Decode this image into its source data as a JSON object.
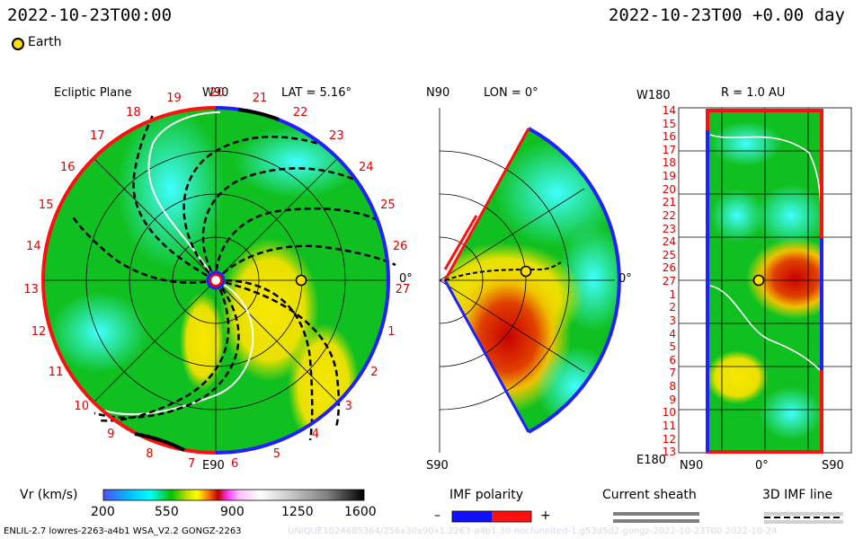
{
  "header": {
    "time_left": "2022-10-23T00:00",
    "time_right": "2022-10-23T00 +0.00 day"
  },
  "legend_earth": {
    "label": "Earth"
  },
  "panel_ecliptic": {
    "title": "Ecliptic Plane",
    "top_label": "W90",
    "lat_label": "LAT = 5.16°",
    "bottom_label": "E90",
    "right_label": "0°",
    "rotation_labels": [
      "20",
      "21",
      "22",
      "23",
      "24",
      "25",
      "26",
      "27",
      "1",
      "2",
      "3",
      "4",
      "5",
      "6",
      "7",
      "8",
      "9",
      "10",
      "11",
      "12",
      "13",
      "14",
      "15",
      "16",
      "17",
      "18",
      "19"
    ]
  },
  "panel_meridional": {
    "top_label": "N90",
    "lon_label": "LON = 0°",
    "bottom_label": "S90",
    "right_label": "0°"
  },
  "panel_lonlat": {
    "top_left_label": "W180",
    "radius_label": "R = 1.0 AU",
    "bottom_left_label": "E180",
    "x_labels": [
      "N90",
      "0°",
      "S90"
    ],
    "y_labels": [
      "14",
      "15",
      "16",
      "17",
      "18",
      "19",
      "20",
      "21",
      "22",
      "23",
      "24",
      "25",
      "26",
      "27",
      "1",
      "2",
      "3",
      "4",
      "5",
      "6",
      "7",
      "8",
      "9",
      "10",
      "11",
      "12",
      "13"
    ]
  },
  "colorbar": {
    "label": "Vr (km/s)",
    "ticks": [
      "200",
      "550",
      "900",
      "1250",
      "1600"
    ]
  },
  "imf_polarity": {
    "label": "IMF polarity",
    "minus": "–",
    "plus": "+"
  },
  "current_sheath": {
    "label": "Current sheath"
  },
  "imf_3d": {
    "label": "3D IMF line"
  },
  "footer": {
    "left": "ENLIL-2.7 lowres-2263-a4b1 WSA_V2.2 GONGZ-2263",
    "right": "UNIQUE1024685364/256x30x90x1.2263-a4b1.30-nocfunnited-1.g53d5d2.gongz-2022-10-23T00 2022-10-24"
  }
}
